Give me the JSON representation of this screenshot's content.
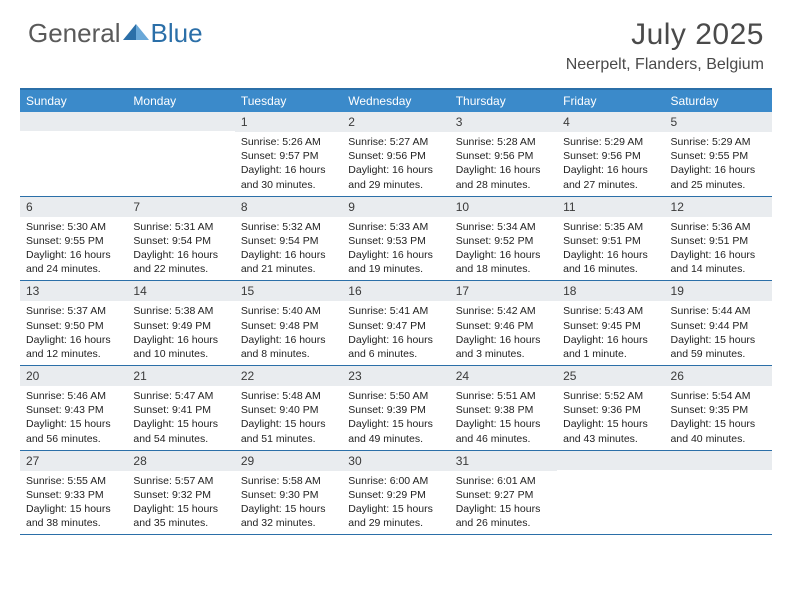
{
  "brand": {
    "part1": "General",
    "part2": "Blue"
  },
  "colors": {
    "header_bg": "#3b8aca",
    "header_border": "#2b6fa8",
    "daynum_bg": "#e9ecef",
    "text": "#222222",
    "brand_gray": "#5a5a5a",
    "brand_blue": "#2b6fa8"
  },
  "title": "July 2025",
  "location": "Neerpelt, Flanders, Belgium",
  "day_names": [
    "Sunday",
    "Monday",
    "Tuesday",
    "Wednesday",
    "Thursday",
    "Friday",
    "Saturday"
  ],
  "weeks": [
    [
      null,
      null,
      {
        "n": "1",
        "sr": "5:26 AM",
        "ss": "9:57 PM",
        "dl": "16 hours and 30 minutes."
      },
      {
        "n": "2",
        "sr": "5:27 AM",
        "ss": "9:56 PM",
        "dl": "16 hours and 29 minutes."
      },
      {
        "n": "3",
        "sr": "5:28 AM",
        "ss": "9:56 PM",
        "dl": "16 hours and 28 minutes."
      },
      {
        "n": "4",
        "sr": "5:29 AM",
        "ss": "9:56 PM",
        "dl": "16 hours and 27 minutes."
      },
      {
        "n": "5",
        "sr": "5:29 AM",
        "ss": "9:55 PM",
        "dl": "16 hours and 25 minutes."
      }
    ],
    [
      {
        "n": "6",
        "sr": "5:30 AM",
        "ss": "9:55 PM",
        "dl": "16 hours and 24 minutes."
      },
      {
        "n": "7",
        "sr": "5:31 AM",
        "ss": "9:54 PM",
        "dl": "16 hours and 22 minutes."
      },
      {
        "n": "8",
        "sr": "5:32 AM",
        "ss": "9:54 PM",
        "dl": "16 hours and 21 minutes."
      },
      {
        "n": "9",
        "sr": "5:33 AM",
        "ss": "9:53 PM",
        "dl": "16 hours and 19 minutes."
      },
      {
        "n": "10",
        "sr": "5:34 AM",
        "ss": "9:52 PM",
        "dl": "16 hours and 18 minutes."
      },
      {
        "n": "11",
        "sr": "5:35 AM",
        "ss": "9:51 PM",
        "dl": "16 hours and 16 minutes."
      },
      {
        "n": "12",
        "sr": "5:36 AM",
        "ss": "9:51 PM",
        "dl": "16 hours and 14 minutes."
      }
    ],
    [
      {
        "n": "13",
        "sr": "5:37 AM",
        "ss": "9:50 PM",
        "dl": "16 hours and 12 minutes."
      },
      {
        "n": "14",
        "sr": "5:38 AM",
        "ss": "9:49 PM",
        "dl": "16 hours and 10 minutes."
      },
      {
        "n": "15",
        "sr": "5:40 AM",
        "ss": "9:48 PM",
        "dl": "16 hours and 8 minutes."
      },
      {
        "n": "16",
        "sr": "5:41 AM",
        "ss": "9:47 PM",
        "dl": "16 hours and 6 minutes."
      },
      {
        "n": "17",
        "sr": "5:42 AM",
        "ss": "9:46 PM",
        "dl": "16 hours and 3 minutes."
      },
      {
        "n": "18",
        "sr": "5:43 AM",
        "ss": "9:45 PM",
        "dl": "16 hours and 1 minute."
      },
      {
        "n": "19",
        "sr": "5:44 AM",
        "ss": "9:44 PM",
        "dl": "15 hours and 59 minutes."
      }
    ],
    [
      {
        "n": "20",
        "sr": "5:46 AM",
        "ss": "9:43 PM",
        "dl": "15 hours and 56 minutes."
      },
      {
        "n": "21",
        "sr": "5:47 AM",
        "ss": "9:41 PM",
        "dl": "15 hours and 54 minutes."
      },
      {
        "n": "22",
        "sr": "5:48 AM",
        "ss": "9:40 PM",
        "dl": "15 hours and 51 minutes."
      },
      {
        "n": "23",
        "sr": "5:50 AM",
        "ss": "9:39 PM",
        "dl": "15 hours and 49 minutes."
      },
      {
        "n": "24",
        "sr": "5:51 AM",
        "ss": "9:38 PM",
        "dl": "15 hours and 46 minutes."
      },
      {
        "n": "25",
        "sr": "5:52 AM",
        "ss": "9:36 PM",
        "dl": "15 hours and 43 minutes."
      },
      {
        "n": "26",
        "sr": "5:54 AM",
        "ss": "9:35 PM",
        "dl": "15 hours and 40 minutes."
      }
    ],
    [
      {
        "n": "27",
        "sr": "5:55 AM",
        "ss": "9:33 PM",
        "dl": "15 hours and 38 minutes."
      },
      {
        "n": "28",
        "sr": "5:57 AM",
        "ss": "9:32 PM",
        "dl": "15 hours and 35 minutes."
      },
      {
        "n": "29",
        "sr": "5:58 AM",
        "ss": "9:30 PM",
        "dl": "15 hours and 32 minutes."
      },
      {
        "n": "30",
        "sr": "6:00 AM",
        "ss": "9:29 PM",
        "dl": "15 hours and 29 minutes."
      },
      {
        "n": "31",
        "sr": "6:01 AM",
        "ss": "9:27 PM",
        "dl": "15 hours and 26 minutes."
      },
      null,
      null
    ]
  ],
  "labels": {
    "sunrise": "Sunrise:",
    "sunset": "Sunset:",
    "daylight": "Daylight:"
  }
}
